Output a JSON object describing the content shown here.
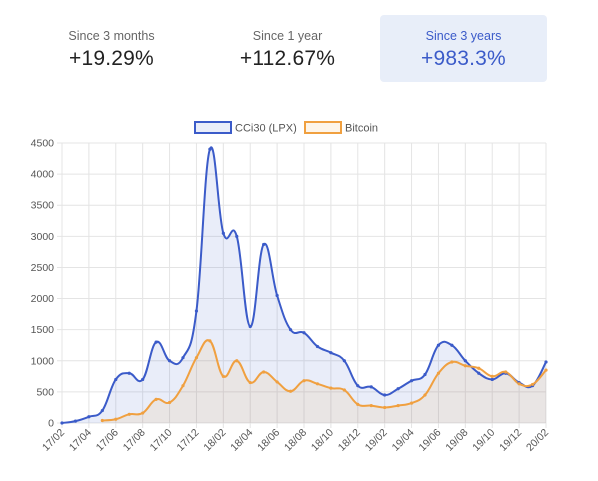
{
  "tabs": [
    {
      "label": "Since 3 months",
      "value": "+19.29%"
    },
    {
      "label": "Since 1 year",
      "value": "+112.67%"
    },
    {
      "label": "Since 3 years",
      "value": "+983.3%",
      "active": true
    }
  ],
  "colors": {
    "cci30_line": "#3b5bc9",
    "cci30_fill": "rgba(59,91,201,0.11)",
    "bitcoin_line": "#f0a040",
    "bitcoin_fill": "rgba(240,160,64,0.11)",
    "grid": "#e4e4e4"
  },
  "chart_data": {
    "type": "line",
    "legend_position": "top",
    "grid": true,
    "ylim": [
      0,
      4500
    ],
    "yticks": [
      0,
      500,
      1000,
      1500,
      2000,
      2500,
      3000,
      3500,
      4000,
      4500
    ],
    "xticks": [
      "17/02",
      "17/04",
      "17/06",
      "17/08",
      "17/10",
      "17/12",
      "18/02",
      "18/04",
      "18/06",
      "18/08",
      "18/10",
      "18/12",
      "19/02",
      "19/04",
      "19/06",
      "19/08",
      "19/10",
      "19/12",
      "20/02"
    ],
    "x_index_range": [
      0,
      36
    ],
    "series": [
      {
        "name": "CCi30 (LPX)",
        "points": [
          [
            0,
            0
          ],
          [
            1,
            30
          ],
          [
            2,
            100
          ],
          [
            3,
            200
          ],
          [
            4,
            700
          ],
          [
            5,
            800
          ],
          [
            6,
            700
          ],
          [
            7,
            1300
          ],
          [
            8,
            1000
          ],
          [
            9,
            1050
          ],
          [
            10,
            1800
          ],
          [
            11,
            4400
          ],
          [
            12,
            3050
          ],
          [
            13,
            3000
          ],
          [
            14,
            1550
          ],
          [
            15,
            2870
          ],
          [
            16,
            2050
          ],
          [
            17,
            1500
          ],
          [
            18,
            1450
          ],
          [
            19,
            1230
          ],
          [
            20,
            1130
          ],
          [
            21,
            1000
          ],
          [
            22,
            600
          ],
          [
            23,
            580
          ],
          [
            24,
            450
          ],
          [
            25,
            550
          ],
          [
            26,
            680
          ],
          [
            27,
            780
          ],
          [
            28,
            1250
          ],
          [
            29,
            1250
          ],
          [
            30,
            1000
          ],
          [
            31,
            800
          ],
          [
            32,
            700
          ],
          [
            33,
            800
          ],
          [
            34,
            650
          ],
          [
            35,
            600
          ],
          [
            36,
            980
          ]
        ]
      },
      {
        "name": "Bitcoin",
        "points": [
          [
            3,
            40
          ],
          [
            4,
            60
          ],
          [
            5,
            140
          ],
          [
            6,
            160
          ],
          [
            7,
            380
          ],
          [
            8,
            330
          ],
          [
            9,
            600
          ],
          [
            10,
            1050
          ],
          [
            11,
            1320
          ],
          [
            12,
            750
          ],
          [
            13,
            1000
          ],
          [
            14,
            650
          ],
          [
            15,
            820
          ],
          [
            16,
            660
          ],
          [
            17,
            510
          ],
          [
            18,
            680
          ],
          [
            19,
            630
          ],
          [
            20,
            560
          ],
          [
            21,
            530
          ],
          [
            22,
            300
          ],
          [
            23,
            280
          ],
          [
            24,
            250
          ],
          [
            25,
            280
          ],
          [
            26,
            320
          ],
          [
            27,
            450
          ],
          [
            28,
            800
          ],
          [
            29,
            980
          ],
          [
            30,
            920
          ],
          [
            31,
            880
          ],
          [
            32,
            750
          ],
          [
            33,
            820
          ],
          [
            34,
            630
          ],
          [
            35,
            620
          ],
          [
            36,
            850
          ]
        ]
      }
    ]
  }
}
